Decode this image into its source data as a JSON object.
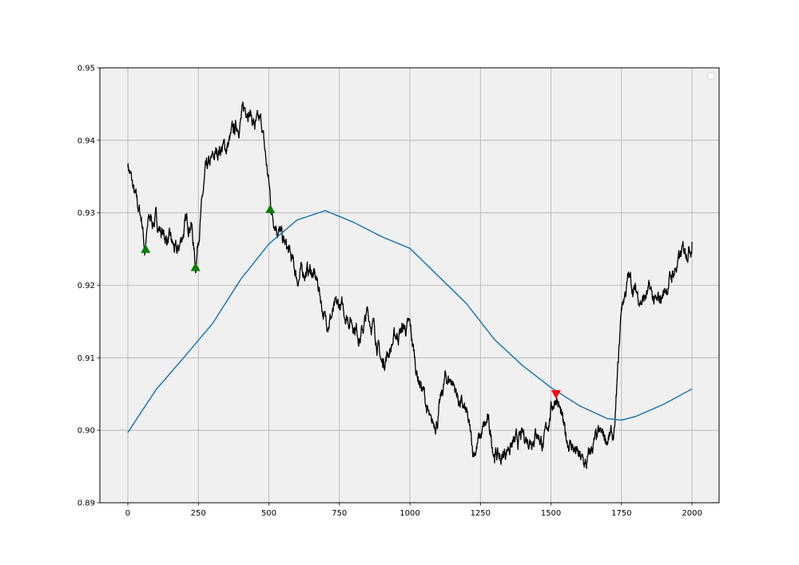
{
  "chart_data": {
    "type": "line",
    "title": "",
    "xlabel": "",
    "ylabel": "",
    "xlim": [
      -99,
      2096
    ],
    "ylim": [
      0.89,
      0.95
    ],
    "grid": true,
    "legend": {
      "placement": "top-right",
      "entries": []
    },
    "background": "#f0f0f0",
    "xticks": [
      0,
      250,
      500,
      750,
      1000,
      1250,
      1500,
      1750,
      2000
    ],
    "xtick_labels": [
      "0",
      "250",
      "500",
      "750",
      "1000",
      "1250",
      "1500",
      "1750",
      "2000"
    ],
    "yticks": [
      0.89,
      0.9,
      0.91,
      0.92,
      0.93,
      0.94,
      0.95
    ],
    "ytick_labels": [
      "0.89",
      "0.90",
      "0.91",
      "0.92",
      "0.93",
      "0.94",
      "0.95"
    ],
    "series": [
      {
        "color": "#000000",
        "x": [
          0,
          25,
          50,
          60,
          75,
          100,
          125,
          150,
          175,
          200,
          225,
          240,
          250,
          275,
          300,
          325,
          350,
          375,
          400,
          425,
          450,
          475,
          490,
          500,
          510,
          525,
          550,
          575,
          600,
          625,
          650,
          675,
          700,
          725,
          750,
          775,
          800,
          825,
          850,
          875,
          900,
          925,
          950,
          975,
          1000,
          1025,
          1050,
          1075,
          1100,
          1125,
          1150,
          1175,
          1200,
          1225,
          1250,
          1275,
          1300,
          1325,
          1350,
          1375,
          1400,
          1425,
          1450,
          1475,
          1500,
          1520,
          1550,
          1575,
          1600,
          1625,
          1650,
          1675,
          1700,
          1725,
          1740,
          1750,
          1775,
          1800,
          1825,
          1850,
          1875,
          1900,
          1925,
          1950,
          1975,
          2000
        ],
        "y": [
          0.937,
          0.932,
          0.929,
          0.925,
          0.929,
          0.929,
          0.927,
          0.926,
          0.924,
          0.928,
          0.929,
          0.9225,
          0.927,
          0.935,
          0.937,
          0.939,
          0.939,
          0.941,
          0.943,
          0.945,
          0.942,
          0.942,
          0.937,
          0.934,
          0.93,
          0.929,
          0.926,
          0.924,
          0.921,
          0.922,
          0.922,
          0.92,
          0.915,
          0.916,
          0.917,
          0.916,
          0.915,
          0.913,
          0.916,
          0.914,
          0.909,
          0.911,
          0.913,
          0.914,
          0.914,
          0.908,
          0.905,
          0.9,
          0.902,
          0.907,
          0.907,
          0.904,
          0.902,
          0.897,
          0.899,
          0.901,
          0.897,
          0.896,
          0.898,
          0.898,
          0.899,
          0.899,
          0.9,
          0.898,
          0.903,
          0.905,
          0.899,
          0.898,
          0.896,
          0.895,
          0.898,
          0.899,
          0.899,
          0.899,
          0.91,
          0.917,
          0.921,
          0.919,
          0.918,
          0.919,
          0.917,
          0.919,
          0.921,
          0.923,
          0.925,
          0.926
        ]
      },
      {
        "color": "#1f77b4",
        "x": [
          0,
          100,
          200,
          300,
          400,
          500,
          600,
          700,
          800,
          900,
          1000,
          1100,
          1200,
          1300,
          1400,
          1500,
          1600,
          1700,
          1750,
          1800,
          1900,
          2000
        ],
        "y": [
          0.8997,
          0.9056,
          0.9101,
          0.9147,
          0.9208,
          0.9257,
          0.929,
          0.9303,
          0.9287,
          0.9267,
          0.9251,
          0.9213,
          0.9175,
          0.9125,
          0.9089,
          0.9059,
          0.9034,
          0.9016,
          0.9014,
          0.9019,
          0.9036,
          0.9057
        ]
      }
    ],
    "markers": [
      {
        "kind": "buy",
        "shape": "triangle-up",
        "color": "#008000",
        "x": 63,
        "y": 0.925
      },
      {
        "kind": "buy",
        "shape": "triangle-up",
        "color": "#008000",
        "x": 240,
        "y": 0.9225
      },
      {
        "kind": "buy",
        "shape": "triangle-up",
        "color": "#008000",
        "x": 505,
        "y": 0.9305
      },
      {
        "kind": "sell",
        "shape": "triangle-down",
        "color": "#ff0000",
        "x": 1518,
        "y": 0.905
      }
    ]
  }
}
